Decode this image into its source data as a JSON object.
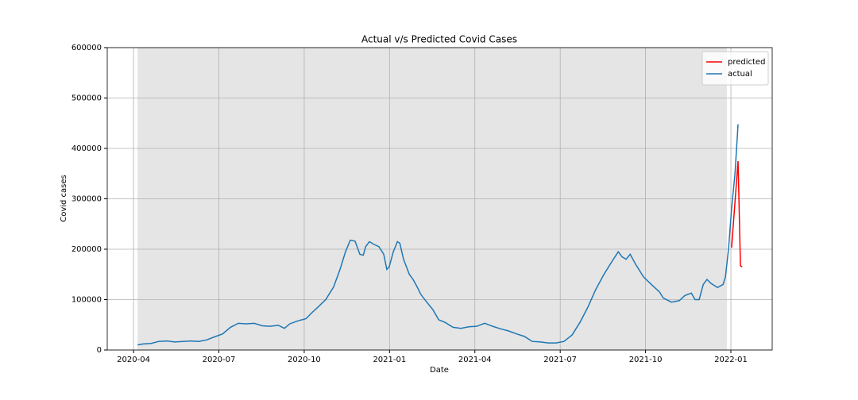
{
  "chart_data": {
    "type": "line",
    "title": "Actual v/s Predicted Covid Cases",
    "x_label": "Date",
    "y_label": "Covid cases",
    "xlim": [
      2020.173,
      2022.121
    ],
    "ylim": [
      0,
      600000
    ],
    "xticks": [
      {
        "value": 2020.25,
        "label": "2020-04"
      },
      {
        "value": 2020.5,
        "label": "2020-07"
      },
      {
        "value": 2020.75,
        "label": "2020-10"
      },
      {
        "value": 2021.0,
        "label": "2021-01"
      },
      {
        "value": 2021.25,
        "label": "2021-04"
      },
      {
        "value": 2021.5,
        "label": "2021-07"
      },
      {
        "value": 2021.75,
        "label": "2021-10"
      },
      {
        "value": 2022.0,
        "label": "2022-01"
      }
    ],
    "yticks": [
      0,
      100000,
      200000,
      300000,
      400000,
      500000,
      600000
    ],
    "grid": true,
    "legend": "upper right",
    "series": [
      {
        "name": "predicted",
        "color": "#ff0000",
        "x": [
          2022.002,
          2022.021,
          2022.028,
          2022.033
        ],
        "values": [
          203000,
          375000,
          167000,
          165000
        ]
      },
      {
        "name": "actual",
        "color": "#1f77b4",
        "x": [
          2020.262,
          2020.278,
          2020.301,
          2020.324,
          2020.348,
          2020.371,
          2020.394,
          2020.418,
          2020.441,
          2020.464,
          2020.487,
          2020.511,
          2020.534,
          2020.557,
          2020.58,
          2020.604,
          2020.627,
          2020.65,
          2020.674,
          2020.692,
          2020.708,
          2020.732,
          2020.755,
          2020.774,
          2020.79,
          2020.813,
          2020.836,
          2020.855,
          2020.871,
          2020.885,
          2020.899,
          2020.913,
          2020.923,
          2020.93,
          2020.941,
          2020.953,
          2020.969,
          2020.983,
          2020.992,
          2020.999,
          2021.011,
          2021.023,
          2021.03,
          2021.041,
          2021.058,
          2021.069,
          2021.081,
          2021.092,
          2021.109,
          2021.127,
          2021.144,
          2021.162,
          2021.186,
          2021.209,
          2021.232,
          2021.255,
          2021.279,
          2021.302,
          2021.325,
          2021.348,
          2021.372,
          2021.395,
          2021.418,
          2021.442,
          2021.465,
          2021.488,
          2021.511,
          2021.535,
          2021.558,
          2021.581,
          2021.604,
          2021.628,
          2021.651,
          2021.67,
          2021.681,
          2021.693,
          2021.705,
          2021.721,
          2021.744,
          2021.767,
          2021.791,
          2021.802,
          2021.826,
          2021.849,
          2021.865,
          2021.884,
          2021.895,
          2021.907,
          2021.919,
          2021.93,
          2021.942,
          2021.961,
          2021.977,
          2021.984,
          2021.993,
          2022.002,
          2022.012,
          2022.021
        ],
        "values": [
          10000,
          12000,
          13000,
          17000,
          18000,
          16000,
          17000,
          18000,
          17000,
          20000,
          26000,
          32000,
          45000,
          53000,
          52000,
          53000,
          48000,
          47000,
          49000,
          43000,
          52000,
          58000,
          62000,
          75000,
          85000,
          100000,
          125000,
          160000,
          195000,
          218000,
          216000,
          190000,
          188000,
          205000,
          215000,
          210000,
          205000,
          190000,
          160000,
          165000,
          195000,
          215000,
          212000,
          180000,
          150000,
          140000,
          125000,
          110000,
          95000,
          80000,
          60000,
          55000,
          45000,
          43000,
          46000,
          47000,
          53000,
          47000,
          42000,
          38000,
          32000,
          27000,
          17000,
          16000,
          14000,
          14000,
          17000,
          30000,
          55000,
          85000,
          120000,
          150000,
          175000,
          195000,
          185000,
          180000,
          190000,
          170000,
          145000,
          130000,
          115000,
          103000,
          95000,
          98000,
          108000,
          113000,
          100000,
          100000,
          130000,
          140000,
          132000,
          124000,
          130000,
          145000,
          200000,
          280000,
          350000,
          448000
        ]
      }
    ]
  }
}
